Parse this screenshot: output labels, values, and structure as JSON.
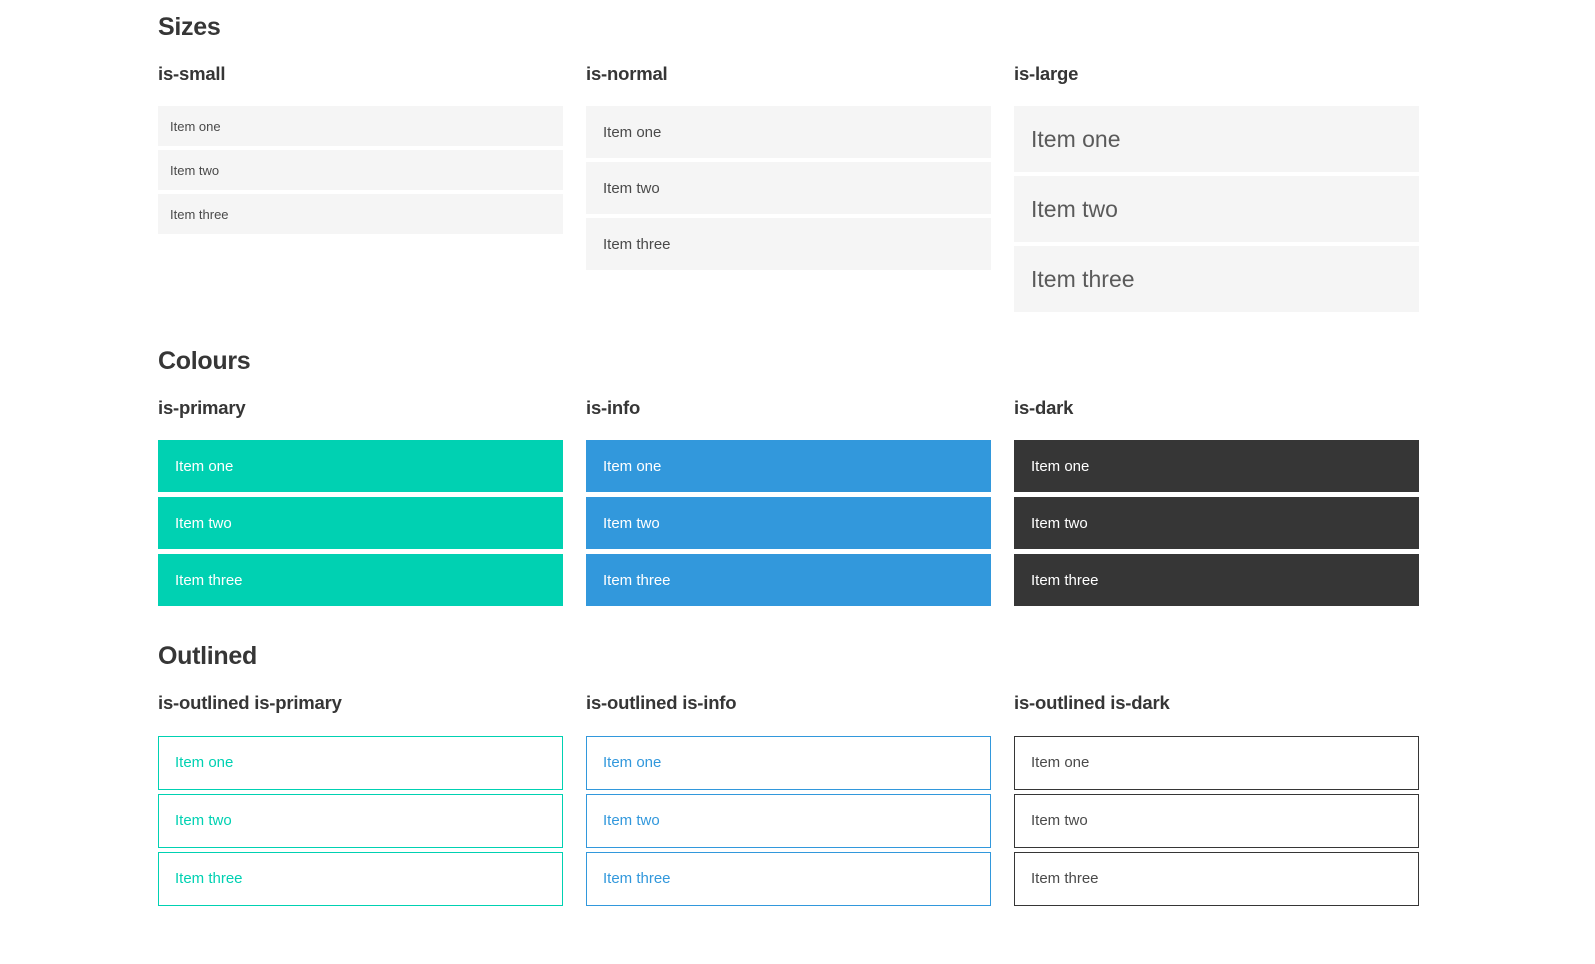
{
  "colors": {
    "primary": "#00d1b2",
    "info": "#3298dc",
    "dark": "#363636",
    "item_bg": "#f5f5f5",
    "item_text": "#4a4a4a",
    "heading_text": "#363636",
    "on_color_text": "#ffffff",
    "page_bg": "#ffffff"
  },
  "sections": [
    {
      "title": "Sizes",
      "groups": [
        {
          "label": "is-small",
          "variant": "small",
          "items": [
            "Item one",
            "Item two",
            "Item three"
          ]
        },
        {
          "label": "is-normal",
          "variant": "normal",
          "items": [
            "Item one",
            "Item two",
            "Item three"
          ]
        },
        {
          "label": "is-large",
          "variant": "large",
          "items": [
            "Item one",
            "Item two",
            "Item three"
          ]
        }
      ]
    },
    {
      "title": "Colours",
      "groups": [
        {
          "label": "is-primary",
          "variant": "primary",
          "items": [
            "Item one",
            "Item two",
            "Item three"
          ]
        },
        {
          "label": "is-info",
          "variant": "info",
          "items": [
            "Item one",
            "Item two",
            "Item three"
          ]
        },
        {
          "label": "is-dark",
          "variant": "dark",
          "items": [
            "Item one",
            "Item two",
            "Item three"
          ]
        }
      ]
    },
    {
      "title": "Outlined",
      "groups": [
        {
          "label": "is-outlined is-primary",
          "variant": "outlined-primary",
          "items": [
            "Item one",
            "Item two",
            "Item three"
          ]
        },
        {
          "label": "is-outlined is-info",
          "variant": "outlined-info",
          "items": [
            "Item one",
            "Item two",
            "Item three"
          ]
        },
        {
          "label": "is-outlined is-dark",
          "variant": "outlined-dark",
          "items": [
            "Item one",
            "Item two",
            "Item three"
          ]
        }
      ]
    }
  ]
}
